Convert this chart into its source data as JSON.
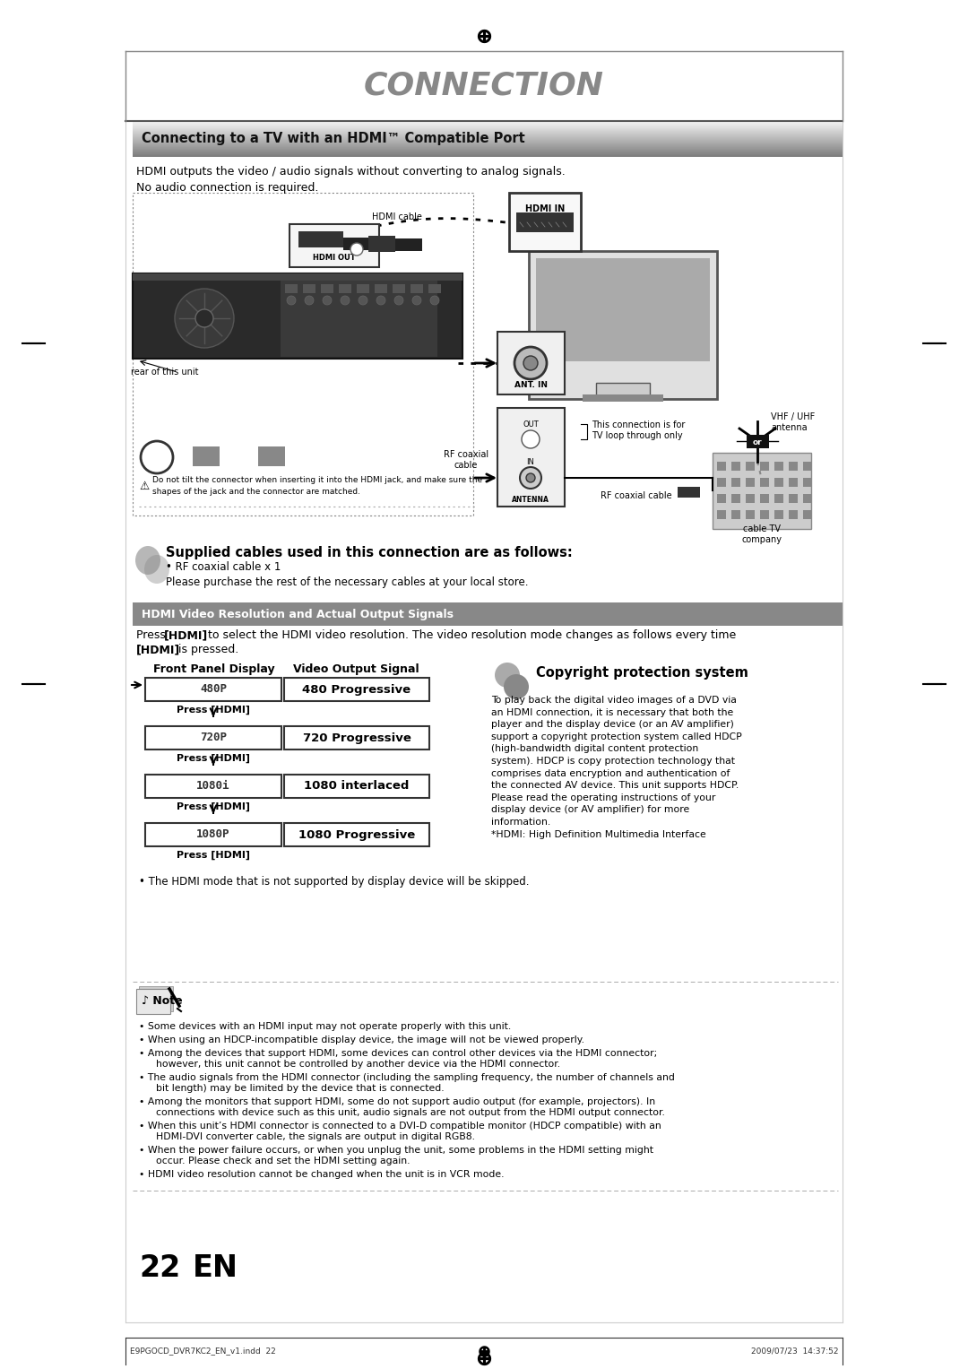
{
  "page_bg": "#ffffff",
  "title": "CONNECTION",
  "title_color": "#888888",
  "title_fontsize": 26,
  "section1_header": "Connecting to a TV with an HDMI™ Compatible Port",
  "bullet1": "HDMI outputs the video / audio signals without converting to analog signals.",
  "bullet2": "No audio connection is required.",
  "section2_header": "HDMI Video Resolution and Actual Output Signals",
  "press_text": "Press [HDMI] to select the HDMI video resolution. The video resolution mode changes as follows every time [HDMI] is\npressed.",
  "front_panel_label": "Front Panel Display",
  "video_output_label": "Video Output Signal",
  "rows": [
    {
      "display": "480P",
      "signal": "480 Progressive"
    },
    {
      "display": "720P",
      "signal": "720 Progressive"
    },
    {
      "display": "1080i",
      "signal": "1080 interlaced"
    },
    {
      "display": "1080P",
      "signal": "1080 Progressive"
    }
  ],
  "skip_note": "• The HDMI mode that is not supported by display device will be skipped.",
  "copyright_title": "Copyright protection system",
  "copyright_text": "To play back the digital video images of a DVD via\nan HDMI connection, it is necessary that both the\nplayer and the display device (or an AV amplifier)\nsupport a copyright protection system called HDCP\n(high-bandwidth digital content protection\nsystem). HDCP is copy protection technology that\ncomprises data encryption and authentication of\nthe connected AV device. This unit supports HDCP.\nPlease read the operating instructions of your\ndisplay device (or AV amplifier) for more\ninformation.\n*HDMI: High Definition Multimedia Interface",
  "supplied_cables_header": "Supplied cables used in this connection are as follows:",
  "note_bullets": [
    "• Some devices with an HDMI input may not operate properly with this unit.",
    "• When using an HDCP-incompatible display device, the image will not be viewed properly.",
    "• Among the devices that support HDMI, some devices can control other devices via the HDMI connector; however, this unit cannot be controlled by another device via the HDMI connector.",
    "• The audio signals from the HDMI connector (including the sampling frequency, the number of channels and bit length) may be limited by the device that is connected.",
    "• Among the monitors that support HDMI, some do not support audio output (for example, projectors). In connections with device such as this unit, audio signals are not output from the HDMI output connector.",
    "• When this unit’s HDMI connector is connected to a DVI-D compatible monitor (HDCP compatible) with an HDMI-DVI converter cable, the signals are output in digital RGB8.",
    "• When the power failure occurs, or when you unplug the unit, some problems in the HDMI setting might occur. Please check and set the HDMI setting again.",
    "• HDMI video resolution cannot be changed when the unit is in VCR mode."
  ],
  "page_number": "22",
  "page_en": "EN",
  "footer_left": "E9PGOCD_DVR7KC2_EN_v1.indd  22",
  "footer_right": "2009/07/23  14:37:52"
}
